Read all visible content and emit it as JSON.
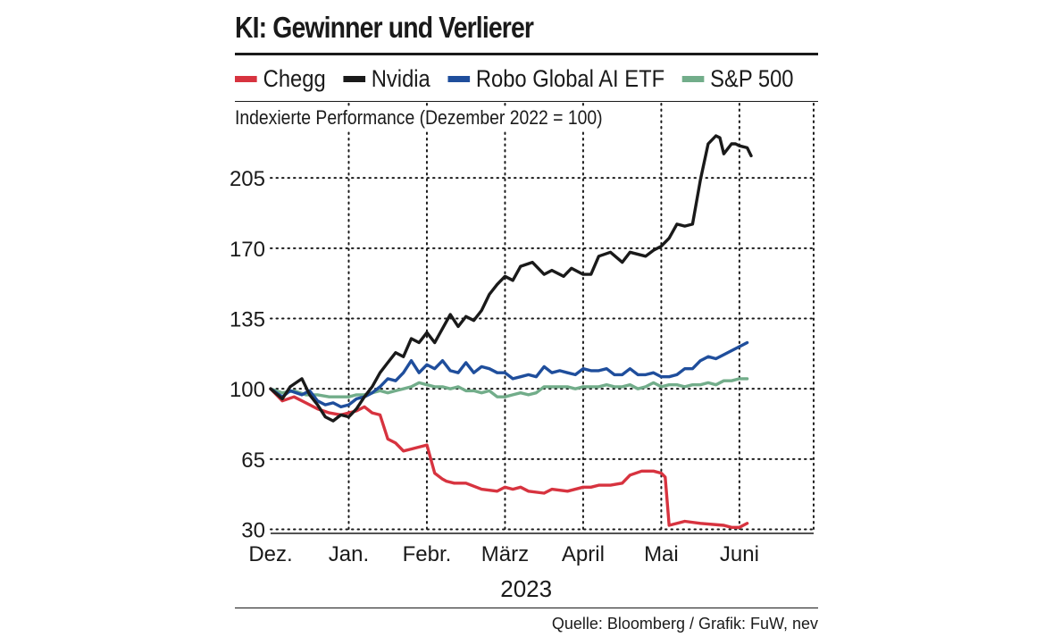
{
  "title": "KI: Gewinner und Verlierer",
  "subtitle": "Indexierte Performance (Dezember 2022 = 100)",
  "source": "Quelle: Bloomberg / Grafik: FuW, nev",
  "legend": [
    {
      "label": "Chegg",
      "color": "#d7333f"
    },
    {
      "label": "Nvidia",
      "color": "#1a1a1a"
    },
    {
      "label": "Robo Global AI ETF",
      "color": "#1f4e9c"
    },
    {
      "label": "S&P 500",
      "color": "#72ad8a"
    }
  ],
  "chart_data": {
    "type": "line",
    "title": "KI: Gewinner und Verlierer",
    "subtitle": "Indexierte Performance (Dezember 2022 = 100)",
    "xlabel": "2023",
    "ylabel": "",
    "x_ticks": [
      "Dez.",
      "Jan.",
      "Febr.",
      "März",
      "April",
      "Mai",
      "Juni"
    ],
    "y_ticks": [
      30,
      65,
      100,
      135,
      170,
      205
    ],
    "xlim": [
      0,
      6.95
    ],
    "ylim": [
      28,
      242
    ],
    "grid": true,
    "legend_position": "top",
    "series": [
      {
        "name": "Chegg",
        "color": "#d7333f",
        "x": [
          0,
          0.15,
          0.3,
          0.45,
          0.6,
          0.75,
          0.9,
          1.0,
          1.1,
          1.2,
          1.3,
          1.4,
          1.5,
          1.55,
          1.6,
          1.7,
          1.8,
          1.9,
          2.0,
          2.1,
          2.2,
          2.25,
          2.35,
          2.5,
          2.7,
          2.9,
          3.0,
          3.1,
          3.2,
          3.3,
          3.5,
          3.6,
          3.8,
          4.0,
          4.1,
          4.2,
          4.35,
          4.5,
          4.6,
          4.75,
          4.9,
          5.0,
          5.05,
          5.1,
          5.3,
          5.5,
          5.8,
          5.9,
          6.0,
          6.1
        ],
        "y": [
          100,
          94,
          96,
          93,
          90,
          88,
          87,
          88,
          89,
          91,
          88,
          87,
          75,
          74,
          73,
          69,
          70,
          71,
          72,
          58,
          55,
          54,
          53,
          53,
          50,
          49,
          51,
          50,
          51,
          49,
          48,
          50,
          49,
          51,
          51,
          52,
          52,
          53,
          57,
          59,
          59,
          58,
          56,
          32,
          34,
          33,
          32,
          31,
          31,
          33
        ]
      },
      {
        "name": "Nvidia",
        "color": "#1a1a1a",
        "x": [
          0,
          0.15,
          0.25,
          0.4,
          0.5,
          0.6,
          0.7,
          0.8,
          0.9,
          1.0,
          1.1,
          1.2,
          1.3,
          1.4,
          1.5,
          1.6,
          1.7,
          1.8,
          1.9,
          2.0,
          2.1,
          2.2,
          2.3,
          2.4,
          2.5,
          2.6,
          2.7,
          2.8,
          2.9,
          3.0,
          3.1,
          3.2,
          3.35,
          3.5,
          3.6,
          3.75,
          3.85,
          4.0,
          4.1,
          4.2,
          4.35,
          4.5,
          4.6,
          4.8,
          4.9,
          5.0,
          5.1,
          5.2,
          5.3,
          5.4,
          5.5,
          5.6,
          5.7,
          5.75,
          5.8,
          5.9,
          5.95,
          6.0,
          6.1,
          6.15
        ],
        "y": [
          100,
          95,
          101,
          105,
          97,
          92,
          86,
          84,
          87,
          86,
          90,
          96,
          101,
          108,
          113,
          118,
          116,
          125,
          123,
          128,
          123,
          130,
          137,
          131,
          136,
          134,
          139,
          147,
          152,
          156,
          154,
          161,
          163,
          157,
          159,
          156,
          160,
          157,
          157,
          166,
          168,
          163,
          168,
          166,
          169,
          171,
          175,
          182,
          181,
          182,
          204,
          222,
          226,
          225,
          217,
          222,
          222,
          221,
          220,
          216
        ]
      },
      {
        "name": "Robo Global AI ETF",
        "color": "#1f4e9c",
        "x": [
          0,
          0.15,
          0.25,
          0.4,
          0.5,
          0.6,
          0.7,
          0.8,
          0.9,
          1.0,
          1.1,
          1.2,
          1.3,
          1.4,
          1.5,
          1.6,
          1.7,
          1.8,
          1.9,
          2.0,
          2.1,
          2.2,
          2.3,
          2.4,
          2.5,
          2.6,
          2.7,
          2.8,
          2.9,
          3.0,
          3.1,
          3.2,
          3.3,
          3.4,
          3.5,
          3.6,
          3.7,
          3.8,
          3.9,
          4.0,
          4.1,
          4.2,
          4.3,
          4.4,
          4.5,
          4.6,
          4.7,
          4.8,
          4.9,
          5.0,
          5.1,
          5.2,
          5.3,
          5.4,
          5.5,
          5.6,
          5.7,
          5.8,
          5.9,
          6.0,
          6.1
        ],
        "y": [
          100,
          96,
          99,
          97,
          99,
          94,
          92,
          93,
          91,
          92,
          95,
          96,
          98,
          101,
          105,
          104,
          108,
          114,
          108,
          112,
          110,
          114,
          109,
          108,
          113,
          108,
          111,
          110,
          108,
          108,
          105,
          106,
          107,
          106,
          111,
          108,
          109,
          108,
          107,
          110,
          109,
          109,
          110,
          107,
          107,
          110,
          107,
          107,
          108,
          106,
          106,
          107,
          110,
          110,
          114,
          116,
          115,
          117,
          119,
          121,
          123
        ]
      },
      {
        "name": "S&P 500",
        "color": "#72ad8a",
        "x": [
          0,
          0.15,
          0.3,
          0.45,
          0.6,
          0.75,
          0.9,
          1.0,
          1.1,
          1.2,
          1.3,
          1.4,
          1.5,
          1.6,
          1.7,
          1.8,
          1.9,
          2.0,
          2.1,
          2.2,
          2.3,
          2.4,
          2.5,
          2.6,
          2.7,
          2.8,
          2.9,
          3.0,
          3.1,
          3.2,
          3.3,
          3.4,
          3.5,
          3.6,
          3.7,
          3.8,
          3.9,
          4.0,
          4.1,
          4.2,
          4.3,
          4.4,
          4.5,
          4.6,
          4.7,
          4.8,
          4.9,
          5.0,
          5.1,
          5.2,
          5.3,
          5.4,
          5.5,
          5.6,
          5.7,
          5.8,
          5.9,
          6.0,
          6.1
        ],
        "y": [
          100,
          98,
          99,
          97,
          97,
          96,
          96,
          96,
          97,
          97,
          98,
          99,
          98,
          99,
          100,
          101,
          103,
          102,
          101,
          101,
          100,
          101,
          99,
          99,
          98,
          99,
          96,
          96,
          97,
          98,
          97,
          98,
          101,
          101,
          101,
          101,
          100,
          101,
          101,
          101,
          102,
          101,
          101,
          102,
          100,
          101,
          103,
          101,
          102,
          102,
          101,
          102,
          102,
          103,
          102,
          104,
          104,
          105,
          105
        ]
      }
    ]
  }
}
